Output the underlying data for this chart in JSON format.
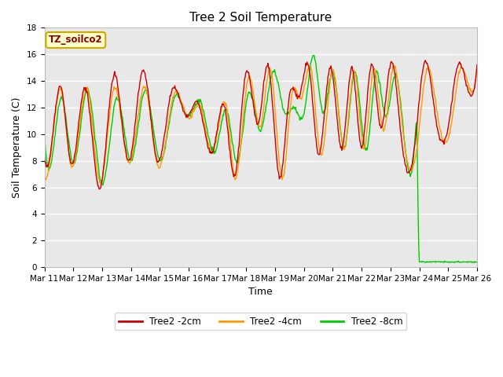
{
  "title": "Tree 2 Soil Temperature",
  "xlabel": "Time",
  "ylabel": "Soil Temperature (C)",
  "annotation": "TZ_soilco2",
  "ylim": [
    0,
    18
  ],
  "xlim": [
    0,
    360
  ],
  "background_color": "#ffffff",
  "plot_bg_color": "#e8e8e8",
  "grid_color": "#ffffff",
  "series_colors": {
    "2cm": "#cc0000",
    "4cm": "#ff9900",
    "8cm": "#00cc00"
  },
  "legend_labels": [
    "Tree2 -2cm",
    "Tree2 -4cm",
    "Tree2 -8cm"
  ],
  "x_tick_labels": [
    "Mar 11",
    "Mar 12",
    "Mar 13",
    "Mar 14",
    "Mar 15",
    "Mar 16",
    "Mar 17",
    "Mar 18",
    "Mar 19",
    "Mar 20",
    "Mar 21",
    "Mar 22",
    "Mar 23",
    "Mar 24",
    "Mar 25",
    "Mar 26"
  ],
  "x_tick_positions": [
    0,
    24,
    48,
    72,
    96,
    120,
    144,
    168,
    192,
    216,
    240,
    264,
    288,
    312,
    336,
    360
  ],
  "yticks": [
    0,
    2,
    4,
    6,
    8,
    10,
    12,
    14,
    16,
    18
  ],
  "annotation_color": "#8b0000",
  "annotation_bg": "#ffffcc",
  "annotation_edge": "#ccaa00"
}
